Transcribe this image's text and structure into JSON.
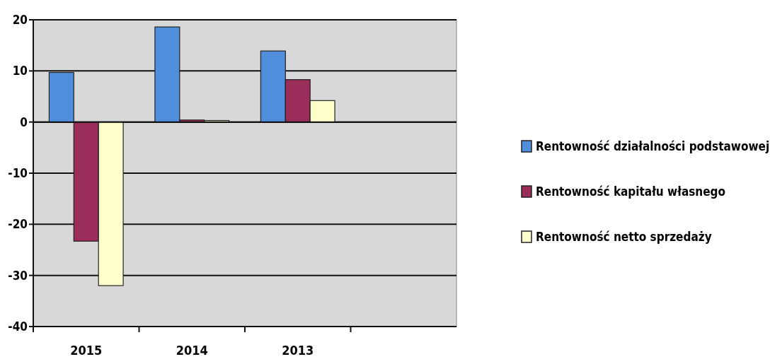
{
  "chart_data": {
    "type": "bar",
    "categories": [
      "2015",
      "2014",
      "2013",
      null
    ],
    "series": [
      {
        "name": "Rentowność działalności podstawowej",
        "color": "#4f8fdc",
        "values": [
          9.7,
          18.6,
          13.9,
          null
        ]
      },
      {
        "name": "Rentowność kapitału własnego",
        "color": "#9b2d5a",
        "values": [
          -23.3,
          0.4,
          8.3,
          null
        ]
      },
      {
        "name": "Rentowność netto  sprzedaży",
        "color": "#ffffcc",
        "values": [
          -32,
          0.3,
          4.2,
          null
        ]
      }
    ],
    "ylim": [
      -40,
      20
    ],
    "yticks": [
      -40,
      -30,
      -20,
      -10,
      0,
      10,
      20
    ],
    "grid": "y",
    "legend": "right"
  }
}
